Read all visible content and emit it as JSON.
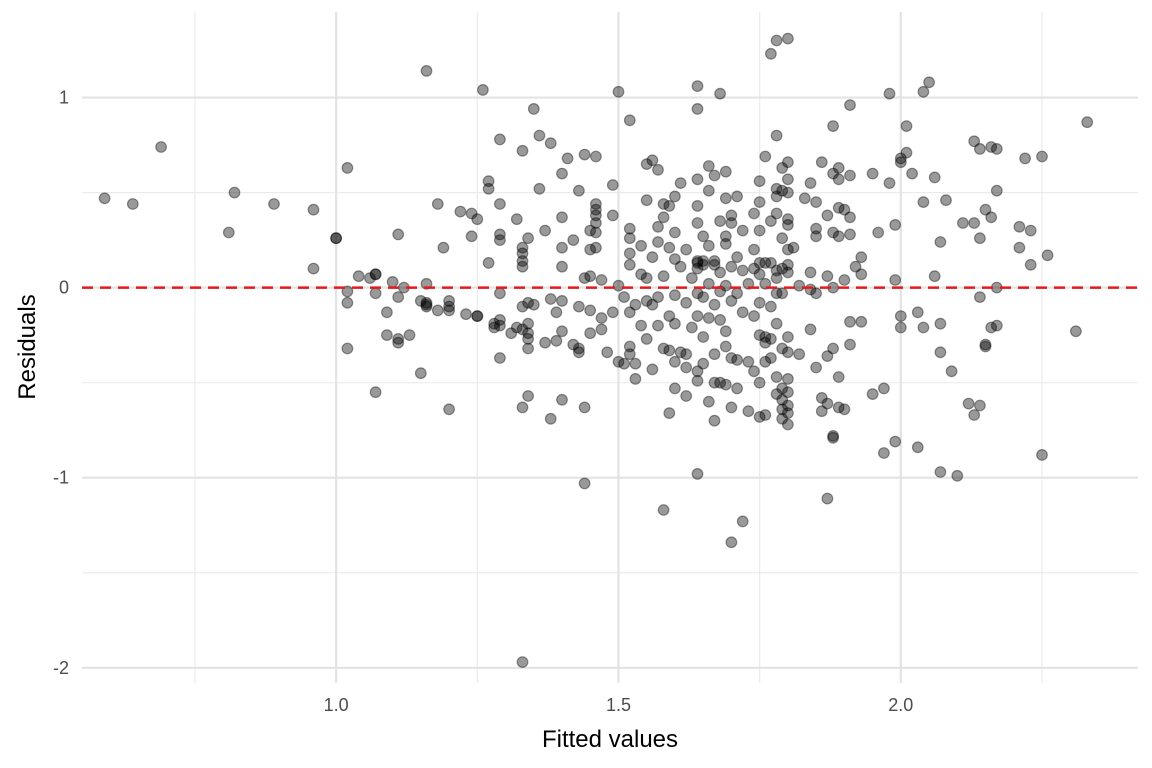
{
  "chart_data": {
    "type": "scatter",
    "xlabel": "Fitted values",
    "ylabel": "Residuals",
    "xlim": [
      0.55,
      2.42
    ],
    "ylim": [
      -2.08,
      1.45
    ],
    "x_ticks": [
      1.0,
      1.5,
      2.0
    ],
    "x_tick_labels": [
      "1.0",
      "1.5",
      "2.0"
    ],
    "x_minor_ticks": [
      0.75,
      1.25,
      1.75,
      2.25
    ],
    "y_ticks": [
      1,
      0,
      -1,
      -2
    ],
    "y_tick_labels": [
      "1",
      "0",
      "-1",
      "-2"
    ],
    "y_minor_ticks": [
      0.5,
      -0.5,
      -1.5
    ],
    "grid": true,
    "reference_line": {
      "y": 0,
      "color": "#e41a1c",
      "style": "dashed"
    },
    "point_color": "#000000",
    "point_opacity": 0.4,
    "points": [
      [
        0.59,
        0.47
      ],
      [
        0.64,
        0.44
      ],
      [
        0.69,
        0.74
      ],
      [
        0.82,
        0.5
      ],
      [
        0.81,
        0.29
      ],
      [
        0.89,
        0.44
      ],
      [
        0.96,
        0.41
      ],
      [
        0.96,
        0.1
      ],
      [
        1.0,
        0.26
      ],
      [
        1.0,
        0.26
      ],
      [
        1.02,
        0.63
      ],
      [
        1.02,
        -0.02
      ],
      [
        1.02,
        -0.08
      ],
      [
        1.02,
        -0.32
      ],
      [
        1.04,
        0.06
      ],
      [
        1.06,
        0.05
      ],
      [
        1.07,
        0.07
      ],
      [
        1.07,
        0.07
      ],
      [
        1.07,
        -0.03
      ],
      [
        1.07,
        -0.55
      ],
      [
        1.09,
        -0.13
      ],
      [
        1.09,
        -0.25
      ],
      [
        1.1,
        0.03
      ],
      [
        1.11,
        0.28
      ],
      [
        1.11,
        -0.05
      ],
      [
        1.11,
        -0.27
      ],
      [
        1.11,
        -0.29
      ],
      [
        1.12,
        0.0
      ],
      [
        1.13,
        -0.25
      ],
      [
        1.15,
        -0.45
      ],
      [
        1.15,
        -0.07
      ],
      [
        1.16,
        0.02
      ],
      [
        1.16,
        -0.08
      ],
      [
        1.16,
        -0.1
      ],
      [
        1.16,
        -0.09
      ],
      [
        1.16,
        1.14
      ],
      [
        1.18,
        0.44
      ],
      [
        1.18,
        -0.12
      ],
      [
        1.19,
        0.21
      ],
      [
        1.2,
        -0.07
      ],
      [
        1.2,
        -0.1
      ],
      [
        1.2,
        -0.12
      ],
      [
        1.2,
        -0.64
      ],
      [
        1.22,
        0.4
      ],
      [
        1.23,
        -0.14
      ],
      [
        1.24,
        0.39
      ],
      [
        1.24,
        0.27
      ],
      [
        1.25,
        0.36
      ],
      [
        1.25,
        -0.15
      ],
      [
        1.25,
        -0.15
      ],
      [
        1.26,
        1.04
      ],
      [
        1.27,
        0.52
      ],
      [
        1.27,
        0.56
      ],
      [
        1.27,
        0.13
      ],
      [
        1.28,
        -0.19
      ],
      [
        1.28,
        -0.21
      ],
      [
        1.29,
        0.28
      ],
      [
        1.29,
        0.78
      ],
      [
        1.29,
        0.44
      ],
      [
        1.29,
        0.25
      ],
      [
        1.29,
        -0.03
      ],
      [
        1.29,
        -0.17
      ],
      [
        1.29,
        -0.2
      ],
      [
        1.29,
        -0.37
      ],
      [
        1.31,
        -0.24
      ],
      [
        1.32,
        -0.21
      ],
      [
        1.32,
        0.36
      ],
      [
        1.33,
        0.72
      ],
      [
        1.33,
        0.21
      ],
      [
        1.33,
        0.18
      ],
      [
        1.33,
        0.14
      ],
      [
        1.33,
        0.11
      ],
      [
        1.33,
        -0.1
      ],
      [
        1.33,
        -0.22
      ],
      [
        1.33,
        -0.63
      ],
      [
        1.33,
        -1.97
      ],
      [
        1.34,
        0.26
      ],
      [
        1.34,
        -0.08
      ],
      [
        1.34,
        -0.19
      ],
      [
        1.34,
        -0.24
      ],
      [
        1.34,
        -0.27
      ],
      [
        1.34,
        -0.32
      ],
      [
        1.34,
        -0.57
      ],
      [
        1.35,
        0.94
      ],
      [
        1.35,
        -0.09
      ],
      [
        1.36,
        0.8
      ],
      [
        1.36,
        0.52
      ],
      [
        1.37,
        0.3
      ],
      [
        1.37,
        -0.29
      ],
      [
        1.38,
        0.76
      ],
      [
        1.38,
        -0.06
      ],
      [
        1.38,
        -0.69
      ],
      [
        1.39,
        -0.13
      ],
      [
        1.39,
        -0.28
      ],
      [
        1.4,
        0.6
      ],
      [
        1.4,
        0.37
      ],
      [
        1.4,
        0.21
      ],
      [
        1.4,
        0.11
      ],
      [
        1.4,
        -0.07
      ],
      [
        1.4,
        -0.23
      ],
      [
        1.4,
        -0.59
      ],
      [
        1.41,
        0.68
      ],
      [
        1.42,
        0.25
      ],
      [
        1.42,
        -0.3
      ],
      [
        1.43,
        0.51
      ],
      [
        1.43,
        -0.1
      ],
      [
        1.43,
        -0.32
      ],
      [
        1.43,
        -0.34
      ],
      [
        1.44,
        0.7
      ],
      [
        1.44,
        0.05
      ],
      [
        1.44,
        -1.03
      ],
      [
        1.44,
        -0.63
      ],
      [
        1.45,
        0.3
      ],
      [
        1.45,
        0.2
      ],
      [
        1.45,
        0.06
      ],
      [
        1.45,
        -0.12
      ],
      [
        1.45,
        -0.24
      ],
      [
        1.46,
        0.69
      ],
      [
        1.46,
        0.44
      ],
      [
        1.46,
        0.41
      ],
      [
        1.46,
        0.38
      ],
      [
        1.46,
        0.34
      ],
      [
        1.46,
        0.29
      ],
      [
        1.46,
        0.21
      ],
      [
        1.47,
        0.04
      ],
      [
        1.47,
        -0.16
      ],
      [
        1.47,
        -0.22
      ],
      [
        1.48,
        -0.34
      ],
      [
        1.49,
        0.54
      ],
      [
        1.49,
        0.38
      ],
      [
        1.49,
        -0.13
      ],
      [
        1.5,
        1.03
      ],
      [
        1.5,
        0.01
      ],
      [
        1.5,
        -0.39
      ],
      [
        1.51,
        -0.05
      ],
      [
        1.51,
        -0.4
      ],
      [
        1.52,
        0.88
      ],
      [
        1.52,
        0.31
      ],
      [
        1.52,
        0.26
      ],
      [
        1.52,
        0.18
      ],
      [
        1.52,
        0.12
      ],
      [
        1.52,
        -0.13
      ],
      [
        1.52,
        -0.31
      ],
      [
        1.52,
        -0.35
      ],
      [
        1.53,
        -0.4
      ],
      [
        1.53,
        -0.48
      ],
      [
        1.53,
        -0.09
      ],
      [
        1.54,
        0.22
      ],
      [
        1.54,
        0.07
      ],
      [
        1.54,
        -0.2
      ],
      [
        1.55,
        0.65
      ],
      [
        1.55,
        0.46
      ],
      [
        1.55,
        0.05
      ],
      [
        1.55,
        -0.07
      ],
      [
        1.55,
        -0.27
      ],
      [
        1.56,
        0.67
      ],
      [
        1.56,
        0.16
      ],
      [
        1.56,
        -0.09
      ],
      [
        1.56,
        -0.43
      ],
      [
        1.57,
        0.62
      ],
      [
        1.57,
        0.32
      ],
      [
        1.57,
        0.24
      ],
      [
        1.57,
        -0.05
      ],
      [
        1.57,
        -0.2
      ],
      [
        1.58,
        0.44
      ],
      [
        1.58,
        0.37
      ],
      [
        1.58,
        0.06
      ],
      [
        1.58,
        -0.32
      ],
      [
        1.58,
        -1.17
      ],
      [
        1.59,
        0.43
      ],
      [
        1.59,
        0.21
      ],
      [
        1.59,
        -0.15
      ],
      [
        1.59,
        -0.33
      ],
      [
        1.59,
        -0.66
      ],
      [
        1.6,
        0.48
      ],
      [
        1.6,
        0.29
      ],
      [
        1.6,
        0.15
      ],
      [
        1.6,
        -0.04
      ],
      [
        1.6,
        -0.19
      ],
      [
        1.6,
        -0.39
      ],
      [
        1.6,
        -0.53
      ],
      [
        1.61,
        0.55
      ],
      [
        1.61,
        0.11
      ],
      [
        1.61,
        -0.34
      ],
      [
        1.62,
        0.2
      ],
      [
        1.62,
        -0.08
      ],
      [
        1.62,
        -0.35
      ],
      [
        1.62,
        -0.42
      ],
      [
        1.62,
        -0.57
      ],
      [
        1.63,
        0.05
      ],
      [
        1.63,
        -0.21
      ],
      [
        1.64,
        1.06
      ],
      [
        1.64,
        0.94
      ],
      [
        1.64,
        0.57
      ],
      [
        1.64,
        0.43
      ],
      [
        1.64,
        0.34
      ],
      [
        1.64,
        0.14
      ],
      [
        1.64,
        0.13
      ],
      [
        1.64,
        0.1
      ],
      [
        1.64,
        -0.03
      ],
      [
        1.64,
        -0.15
      ],
      [
        1.64,
        -0.44
      ],
      [
        1.64,
        -0.49
      ],
      [
        1.64,
        -0.98
      ],
      [
        1.65,
        0.27
      ],
      [
        1.65,
        0.14
      ],
      [
        1.65,
        0.12
      ],
      [
        1.65,
        -0.05
      ],
      [
        1.65,
        -0.26
      ],
      [
        1.65,
        -0.4
      ],
      [
        1.66,
        0.64
      ],
      [
        1.66,
        0.51
      ],
      [
        1.66,
        0.22
      ],
      [
        1.66,
        0.02
      ],
      [
        1.66,
        -0.16
      ],
      [
        1.66,
        -0.6
      ],
      [
        1.67,
        0.59
      ],
      [
        1.67,
        0.14
      ],
      [
        1.67,
        0.12
      ],
      [
        1.67,
        -0.09
      ],
      [
        1.67,
        -0.35
      ],
      [
        1.67,
        -0.5
      ],
      [
        1.67,
        -0.7
      ],
      [
        1.68,
        1.02
      ],
      [
        1.68,
        0.35
      ],
      [
        1.68,
        0.08
      ],
      [
        1.68,
        -0.02
      ],
      [
        1.68,
        -0.17
      ],
      [
        1.68,
        -0.5
      ],
      [
        1.69,
        0.61
      ],
      [
        1.69,
        0.47
      ],
      [
        1.69,
        0.27
      ],
      [
        1.69,
        0.23
      ],
      [
        1.69,
        0.01
      ],
      [
        1.69,
        -0.23
      ],
      [
        1.69,
        -0.31
      ],
      [
        1.69,
        -0.51
      ],
      [
        1.7,
        0.38
      ],
      [
        1.7,
        0.34
      ],
      [
        1.7,
        0.11
      ],
      [
        1.7,
        -0.07
      ],
      [
        1.7,
        -0.37
      ],
      [
        1.7,
        -0.63
      ],
      [
        1.7,
        -1.34
      ],
      [
        1.71,
        0.48
      ],
      [
        1.71,
        0.16
      ],
      [
        1.71,
        -0.03
      ],
      [
        1.71,
        -0.38
      ],
      [
        1.71,
        -0.53
      ],
      [
        1.72,
        0.3
      ],
      [
        1.72,
        0.09
      ],
      [
        1.72,
        -0.13
      ],
      [
        1.72,
        -1.23
      ],
      [
        1.73,
        0.02
      ],
      [
        1.73,
        -0.39
      ],
      [
        1.73,
        -0.65
      ],
      [
        1.74,
        0.39
      ],
      [
        1.74,
        0.2
      ],
      [
        1.74,
        0.1
      ],
      [
        1.74,
        -0.15
      ],
      [
        1.74,
        -0.44
      ],
      [
        1.75,
        0.56
      ],
      [
        1.75,
        0.45
      ],
      [
        1.75,
        0.3
      ],
      [
        1.75,
        0.13
      ],
      [
        1.75,
        0.07
      ],
      [
        1.75,
        -0.08
      ],
      [
        1.75,
        -0.25
      ],
      [
        1.75,
        -0.5
      ],
      [
        1.75,
        -0.68
      ],
      [
        1.76,
        0.69
      ],
      [
        1.76,
        0.13
      ],
      [
        1.76,
        0.02
      ],
      [
        1.76,
        -0.26
      ],
      [
        1.76,
        -0.29
      ],
      [
        1.76,
        -0.39
      ],
      [
        1.76,
        -0.67
      ],
      [
        1.77,
        1.23
      ],
      [
        1.77,
        0.35
      ],
      [
        1.77,
        0.13
      ],
      [
        1.77,
        -0.1
      ],
      [
        1.77,
        -0.27
      ],
      [
        1.77,
        -0.37
      ],
      [
        1.78,
        1.3
      ],
      [
        1.78,
        0.8
      ],
      [
        1.78,
        0.52
      ],
      [
        1.78,
        0.48
      ],
      [
        1.78,
        0.39
      ],
      [
        1.78,
        0.09
      ],
      [
        1.78,
        0.05
      ],
      [
        1.78,
        -0.03
      ],
      [
        1.78,
        -0.19
      ],
      [
        1.78,
        -0.47
      ],
      [
        1.78,
        -0.56
      ],
      [
        1.79,
        0.63
      ],
      [
        1.79,
        0.51
      ],
      [
        1.79,
        0.26
      ],
      [
        1.79,
        0.1
      ],
      [
        1.79,
        -0.03
      ],
      [
        1.79,
        -0.32
      ],
      [
        1.79,
        -0.53
      ],
      [
        1.79,
        -0.59
      ],
      [
        1.79,
        -0.64
      ],
      [
        1.79,
        -0.69
      ],
      [
        1.8,
        1.31
      ],
      [
        1.8,
        0.66
      ],
      [
        1.8,
        0.57
      ],
      [
        1.8,
        0.5
      ],
      [
        1.8,
        0.36
      ],
      [
        1.8,
        0.33
      ],
      [
        1.8,
        0.2
      ],
      [
        1.8,
        0.12
      ],
      [
        1.8,
        0.08
      ],
      [
        1.8,
        -0.26
      ],
      [
        1.8,
        -0.34
      ],
      [
        1.8,
        -0.48
      ],
      [
        1.8,
        -0.55
      ],
      [
        1.8,
        -0.62
      ],
      [
        1.8,
        -0.66
      ],
      [
        1.8,
        -0.72
      ],
      [
        1.81,
        0.21
      ],
      [
        1.82,
        0.01
      ],
      [
        1.82,
        -0.35
      ],
      [
        1.83,
        0.47
      ],
      [
        1.84,
        0.55
      ],
      [
        1.84,
        0.08
      ],
      [
        1.84,
        -0.01
      ],
      [
        1.84,
        -0.22
      ],
      [
        1.85,
        0.45
      ],
      [
        1.85,
        0.31
      ],
      [
        1.85,
        0.27
      ],
      [
        1.85,
        -0.03
      ],
      [
        1.85,
        -0.42
      ],
      [
        1.86,
        0.66
      ],
      [
        1.86,
        -0.58
      ],
      [
        1.86,
        -0.65
      ],
      [
        1.87,
        0.38
      ],
      [
        1.87,
        0.06
      ],
      [
        1.87,
        -0.36
      ],
      [
        1.87,
        -1.11
      ],
      [
        1.87,
        -0.61
      ],
      [
        1.88,
        0.85
      ],
      [
        1.88,
        0.6
      ],
      [
        1.88,
        0.29
      ],
      [
        1.88,
        0.0
      ],
      [
        1.88,
        -0.32
      ],
      [
        1.88,
        -0.78
      ],
      [
        1.88,
        -0.79
      ],
      [
        1.89,
        0.63
      ],
      [
        1.89,
        0.57
      ],
      [
        1.89,
        0.42
      ],
      [
        1.89,
        0.27
      ],
      [
        1.89,
        -0.47
      ],
      [
        1.89,
        -0.63
      ],
      [
        1.9,
        0.41
      ],
      [
        1.9,
        0.04
      ],
      [
        1.9,
        -0.64
      ],
      [
        1.91,
        0.96
      ],
      [
        1.91,
        0.59
      ],
      [
        1.91,
        0.28
      ],
      [
        1.91,
        0.37
      ],
      [
        1.91,
        -0.18
      ],
      [
        1.91,
        -0.3
      ],
      [
        1.92,
        0.11
      ],
      [
        1.93,
        0.16
      ],
      [
        1.93,
        0.07
      ],
      [
        1.93,
        -0.18
      ],
      [
        1.95,
        0.6
      ],
      [
        1.95,
        -0.56
      ],
      [
        1.96,
        0.29
      ],
      [
        1.97,
        -0.87
      ],
      [
        1.97,
        -0.53
      ],
      [
        1.98,
        1.02
      ],
      [
        1.98,
        0.55
      ],
      [
        1.99,
        0.33
      ],
      [
        1.99,
        0.04
      ],
      [
        1.99,
        -0.81
      ],
      [
        2.0,
        0.66
      ],
      [
        2.0,
        0.68
      ],
      [
        2.0,
        -0.15
      ],
      [
        2.0,
        -0.21
      ],
      [
        2.01,
        0.85
      ],
      [
        2.01,
        0.71
      ],
      [
        2.02,
        0.6
      ],
      [
        2.03,
        -0.84
      ],
      [
        2.03,
        -0.13
      ],
      [
        2.04,
        1.03
      ],
      [
        2.04,
        0.45
      ],
      [
        2.04,
        -0.21
      ],
      [
        2.05,
        1.08
      ],
      [
        2.06,
        0.58
      ],
      [
        2.06,
        0.06
      ],
      [
        2.07,
        0.24
      ],
      [
        2.07,
        -0.97
      ],
      [
        2.07,
        -0.34
      ],
      [
        2.07,
        -0.19
      ],
      [
        2.08,
        0.46
      ],
      [
        2.09,
        -0.44
      ],
      [
        2.1,
        -0.99
      ],
      [
        2.11,
        0.34
      ],
      [
        2.12,
        -0.61
      ],
      [
        2.13,
        0.77
      ],
      [
        2.13,
        0.34
      ],
      [
        2.13,
        -0.67
      ],
      [
        2.14,
        0.73
      ],
      [
        2.14,
        0.26
      ],
      [
        2.14,
        -0.05
      ],
      [
        2.14,
        -0.62
      ],
      [
        2.15,
        0.41
      ],
      [
        2.15,
        -0.3
      ],
      [
        2.15,
        -0.31
      ],
      [
        2.16,
        0.74
      ],
      [
        2.16,
        0.37
      ],
      [
        2.16,
        -0.21
      ],
      [
        2.17,
        0.73
      ],
      [
        2.17,
        0.51
      ],
      [
        2.17,
        0.0
      ],
      [
        2.17,
        -0.2
      ],
      [
        2.21,
        0.32
      ],
      [
        2.21,
        0.21
      ],
      [
        2.22,
        0.68
      ],
      [
        2.23,
        0.3
      ],
      [
        2.23,
        0.12
      ],
      [
        2.25,
        0.69
      ],
      [
        2.25,
        -0.88
      ],
      [
        2.26,
        0.17
      ],
      [
        2.31,
        -0.23
      ],
      [
        2.33,
        0.87
      ]
    ]
  }
}
